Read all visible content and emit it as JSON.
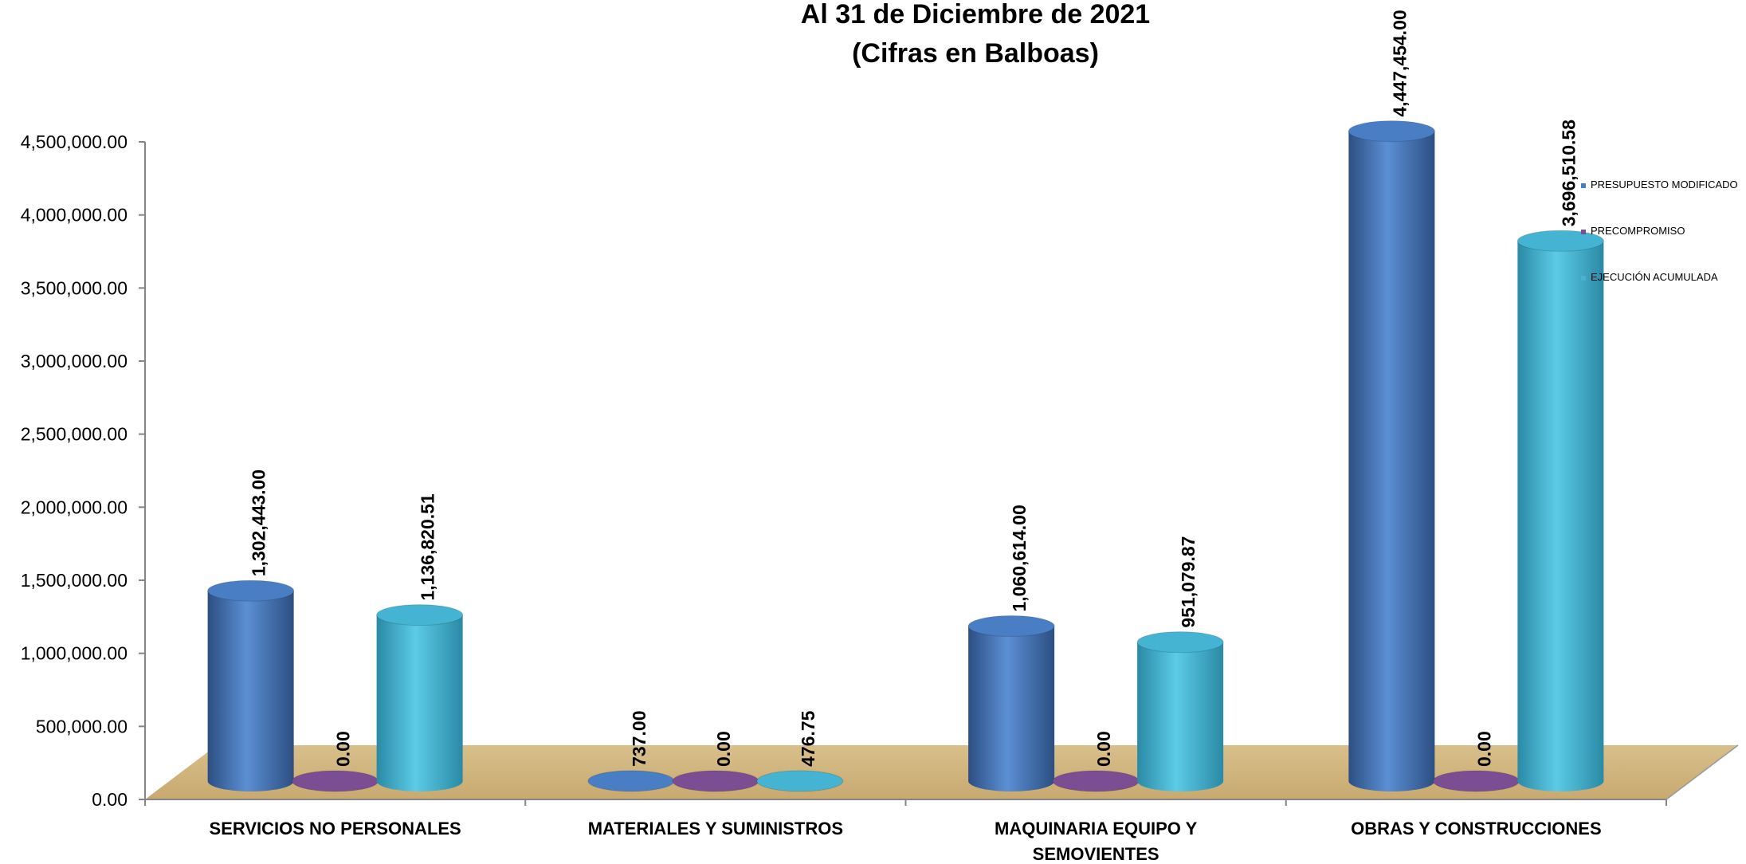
{
  "chart_data": {
    "type": "bar",
    "title_lines": [
      "Al 31 de Diciembre de 2021",
      "(Cifras en Balboas)"
    ],
    "categories": [
      [
        "SERVICIOS NO PERSONALES"
      ],
      [
        "MATERIALES Y SUMINISTROS"
      ],
      [
        "MAQUINARIA EQUIPO Y",
        "SEMOVIENTES"
      ],
      [
        "OBRAS Y CONSTRUCCIONES"
      ]
    ],
    "series": [
      {
        "name": "PRESUPUESTO MODIFICADO",
        "color": "#4A7EC4",
        "values": [
          1302443.0,
          737.0,
          1060614.0,
          4447454.0
        ],
        "labels": [
          "1,302,443.00",
          "737.00",
          "1,060,614.00",
          "4,447,454.00"
        ]
      },
      {
        "name": "PRECOMPROMISO",
        "color": "#7B4E93",
        "values": [
          0,
          0,
          0,
          0
        ],
        "labels": [
          "0.00",
          "0.00",
          "0.00",
          "0.00"
        ]
      },
      {
        "name": "EJECUCIÓN ACUMULADA",
        "color": "#45B4D2",
        "values": [
          1136820.51,
          476.75,
          951079.87,
          3696510.58
        ],
        "labels": [
          "1,136,820.51",
          "476.75",
          "951,079.87",
          "3,696,510.58"
        ]
      }
    ],
    "yticks": [
      "0.00",
      "500,000.00",
      "1,000,000.00",
      "1,500,000.00",
      "2,000,000.00",
      "2,500,000.00",
      "3,000,000.00",
      "3,500,000.00",
      "4,000,000.00",
      "4,500,000.00"
    ],
    "ylim": [
      0,
      4500000
    ],
    "legend_position": "right",
    "grid": false,
    "floor_color": "#D2B57E"
  }
}
